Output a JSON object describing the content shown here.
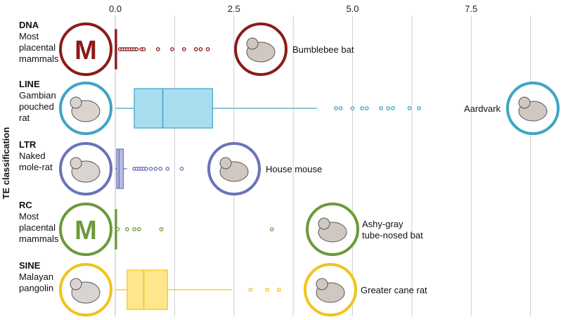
{
  "chart_data": {
    "type": "boxplot",
    "ylabel": "TE classification",
    "xlim": [
      -0.3,
      9.2
    ],
    "xticks": [
      {
        "value": 0,
        "label": "0.0"
      },
      {
        "value": 2.5,
        "label": "2.5"
      },
      {
        "value": 5,
        "label": "5.0"
      },
      {
        "value": 7.5,
        "label": "7.5"
      }
    ],
    "series": [
      {
        "name": "DNA",
        "color": "#8b1a1a",
        "fill": "#8b1a1a",
        "box": {
          "q1": 0.0,
          "median": 0.0,
          "q3": 0.02,
          "whisker_low": 0.0,
          "whisker_high": 0.03
        },
        "outliers": [
          0.1,
          0.15,
          0.2,
          0.25,
          0.3,
          0.35,
          0.4,
          0.45,
          0.55,
          0.6,
          0.9,
          1.2,
          1.45,
          1.7,
          1.8,
          1.95
        ],
        "min_species": {
          "label": "Most placental mammals",
          "icon": "M"
        },
        "max_species": {
          "label": "Bumblebee bat",
          "value": 3.1
        }
      },
      {
        "name": "LINE",
        "color": "#3ea5c8",
        "fill": "#a9dcee",
        "box": {
          "q1": 0.4,
          "median": 1.0,
          "q3": 2.05,
          "whisker_low": 0.0,
          "whisker_high": 4.25
        },
        "outliers": [
          4.65,
          4.75,
          5.0,
          5.2,
          5.3,
          5.6,
          5.75,
          5.85,
          6.2,
          6.4
        ],
        "min_species": {
          "label": "Gambian pouched rat"
        },
        "max_species": {
          "label": "Aardvark",
          "value": 9.2
        }
      },
      {
        "name": "LTR",
        "color": "#6b73b8",
        "fill": "#b9bde3",
        "box": {
          "q1": 0.03,
          "median": 0.08,
          "q3": 0.17,
          "whisker_low": 0.0,
          "whisker_high": 0.25
        },
        "outliers": [
          0.4,
          0.45,
          0.5,
          0.55,
          0.6,
          0.65,
          0.75,
          0.85,
          0.95,
          1.1,
          1.4
        ],
        "min_species": {
          "label": "Naked mole-rat"
        },
        "max_species": {
          "label": "House mouse",
          "value": 2.4
        }
      },
      {
        "name": "RC",
        "color": "#6b9a3a",
        "fill": "#6b9a3a",
        "box": {
          "q1": 0.0,
          "median": 0.0,
          "q3": 0.01,
          "whisker_low": 0.0,
          "whisker_high": 0.02
        },
        "outliers": [
          0.05,
          0.25,
          0.4,
          0.5,
          0.97,
          3.3
        ],
        "min_species": {
          "label": "Most placental mammals",
          "icon": "M"
        },
        "max_species": {
          "label": "Ashy-gray tube-nosed bat",
          "value": 4.7
        }
      },
      {
        "name": "SINE",
        "color": "#f0c419",
        "fill": "#fde68c",
        "box": {
          "q1": 0.25,
          "median": 0.6,
          "q3": 1.1,
          "whisker_low": 0.0,
          "whisker_high": 2.45
        },
        "outliers": [
          2.85,
          3.2,
          3.45
        ],
        "min_species": {
          "label": "Malayan pangolin"
        },
        "max_species": {
          "label": "Greater cane rat",
          "value": 4.4
        }
      }
    ]
  },
  "rows_text": [
    {
      "type": "DNA",
      "lines": [
        "Most",
        "placental",
        "mammals"
      ]
    },
    {
      "type": "LINE",
      "lines": [
        "Gambian",
        "pouched",
        "rat"
      ]
    },
    {
      "type": "LTR",
      "lines": [
        "Naked",
        "mole-rat"
      ]
    },
    {
      "type": "RC",
      "lines": [
        "Most",
        "placental",
        "mammals"
      ]
    },
    {
      "type": "SINE",
      "lines": [
        "Malayan",
        "pangolin"
      ]
    }
  ],
  "annotations": [
    {
      "row": 0,
      "lines": [
        "Bumblebee bat"
      ]
    },
    {
      "row": 1,
      "lines": [
        "Aardvark"
      ]
    },
    {
      "row": 2,
      "lines": [
        "House mouse"
      ]
    },
    {
      "row": 3,
      "lines": [
        "Ashy-gray",
        "tube-nosed bat"
      ]
    },
    {
      "row": 4,
      "lines": [
        "Greater cane rat"
      ]
    }
  ]
}
